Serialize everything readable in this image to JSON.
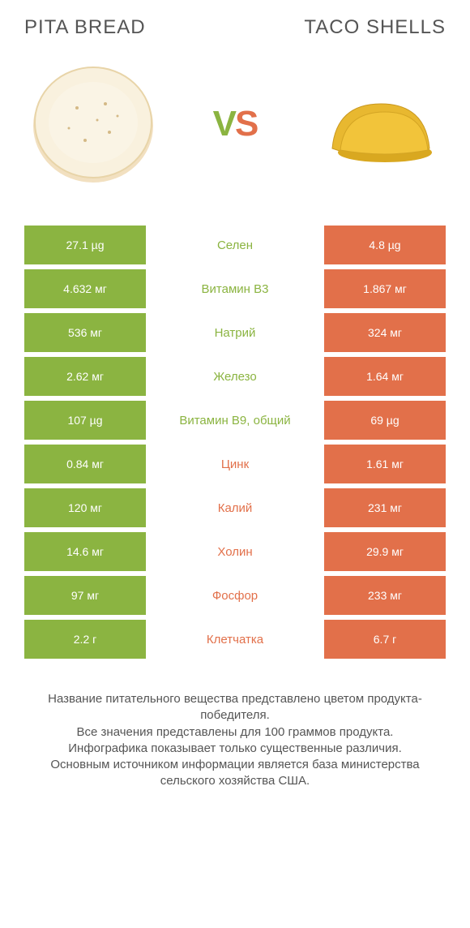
{
  "colors": {
    "green": "#8bb441",
    "orange": "#e2704a",
    "text": "#555555",
    "white": "#ffffff"
  },
  "header": {
    "left_title": "PITA BREAD",
    "right_title": "TACO SHELLS",
    "vs_v": "V",
    "vs_s": "S"
  },
  "rows": [
    {
      "left": "27.1 µg",
      "mid": "Селен",
      "right": "4.8 µg",
      "winner": "left"
    },
    {
      "left": "4.632 мг",
      "mid": "Витамин B3",
      "right": "1.867 мг",
      "winner": "left"
    },
    {
      "left": "536 мг",
      "mid": "Натрий",
      "right": "324 мг",
      "winner": "left"
    },
    {
      "left": "2.62 мг",
      "mid": "Железо",
      "right": "1.64 мг",
      "winner": "left"
    },
    {
      "left": "107 µg",
      "mid": "Витамин B9, общий",
      "right": "69 µg",
      "winner": "left"
    },
    {
      "left": "0.84 мг",
      "mid": "Цинк",
      "right": "1.61 мг",
      "winner": "right"
    },
    {
      "left": "120 мг",
      "mid": "Калий",
      "right": "231 мг",
      "winner": "right"
    },
    {
      "left": "14.6 мг",
      "mid": "Холин",
      "right": "29.9 мг",
      "winner": "right"
    },
    {
      "left": "97 мг",
      "mid": "Фосфор",
      "right": "233 мг",
      "winner": "right"
    },
    {
      "left": "2.2 г",
      "mid": "Клетчатка",
      "right": "6.7 г",
      "winner": "right"
    }
  ],
  "footer": {
    "line1": "Название питательного вещества представлено цветом продукта-победителя.",
    "line2": "Все значения представлены для 100 граммов продукта.",
    "line3": "Инфографика показывает только существенные различия.",
    "line4": "Основным источником информации является база министерства сельского хозяйства США."
  }
}
